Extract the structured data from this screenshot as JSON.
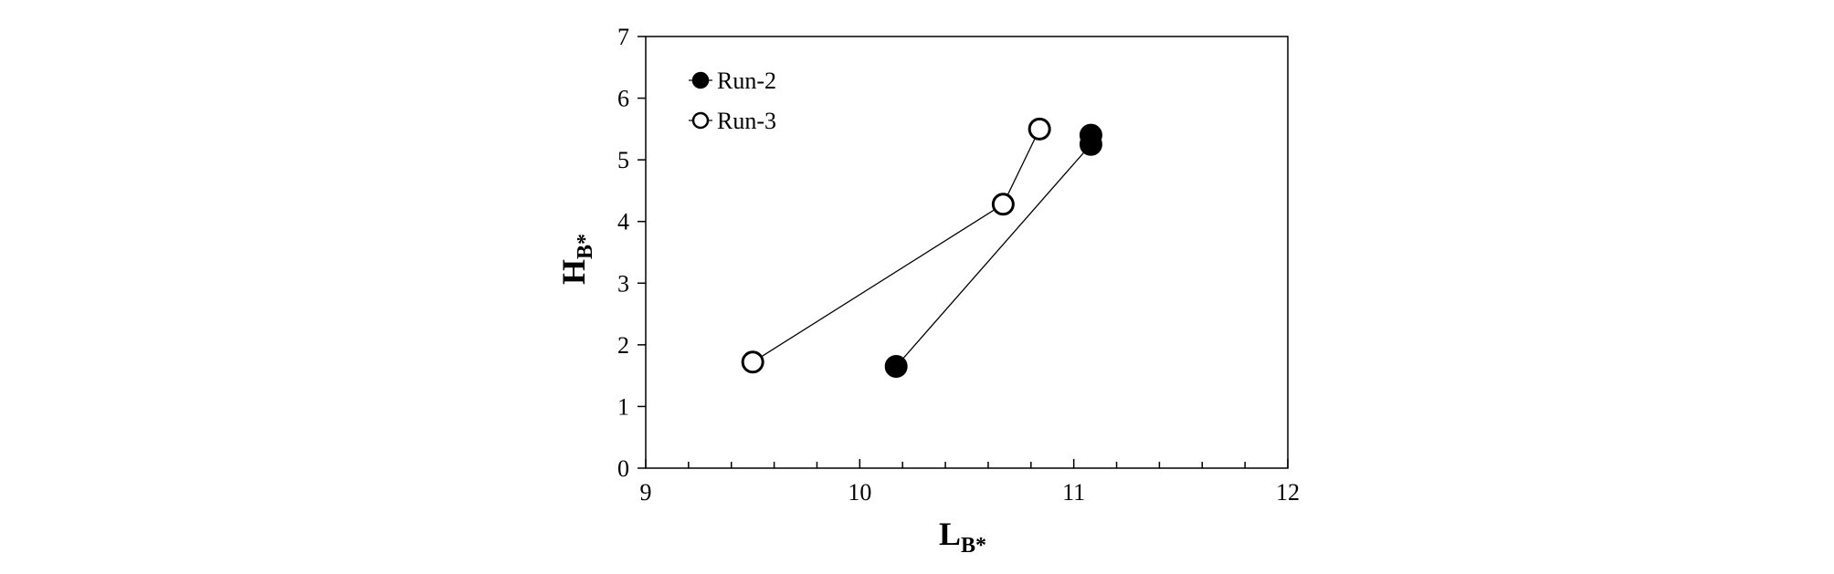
{
  "chart_data": {
    "type": "scatter",
    "xlabel": "L",
    "xlabel_sub": "B*",
    "ylabel": "H",
    "ylabel_sub": "B*",
    "xlim": [
      9,
      12
    ],
    "ylim": [
      0,
      7
    ],
    "xticks": [
      9,
      10,
      11,
      12
    ],
    "yticks": [
      0,
      1,
      2,
      3,
      4,
      5,
      6,
      7
    ],
    "x_minor_step": 0.2,
    "grid": false,
    "legend_position": "top-left",
    "series": [
      {
        "name": "Run-2",
        "marker": "filled-circle",
        "connected": true,
        "x": [
          10.17,
          11.08,
          11.08
        ],
        "y": [
          1.65,
          5.25,
          5.4
        ]
      },
      {
        "name": "Run-3",
        "marker": "open-circle",
        "connected": true,
        "x": [
          9.5,
          10.67,
          10.84
        ],
        "y": [
          1.72,
          4.28,
          5.5
        ]
      }
    ],
    "colors": {
      "axis": "#000000",
      "line": "#000000",
      "marker_fill_filled": "#000000",
      "marker_fill_open": "#ffffff"
    }
  }
}
